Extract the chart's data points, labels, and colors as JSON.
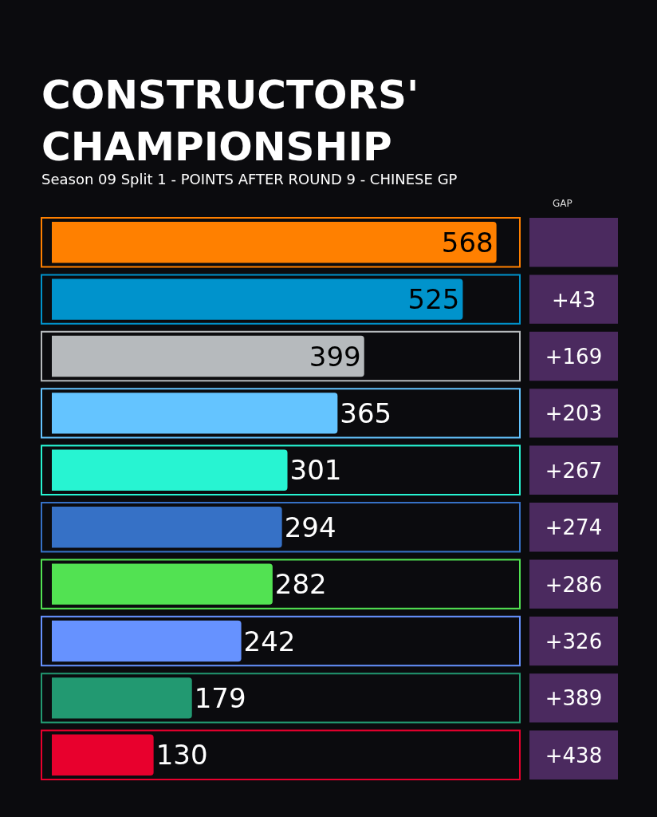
{
  "chart_data": {
    "type": "bar",
    "orientation": "horizontal",
    "title": "CONSTRUCTORS' CHAMPIONSHIP",
    "subtitle": "Season 09 Split 1 - POINTS AFTER ROUND 9 - CHINESE GP",
    "categories": [
      null,
      null,
      null,
      null,
      null,
      null,
      null,
      null,
      null,
      null
    ],
    "values": [
      568,
      525,
      399,
      365,
      301,
      294,
      282,
      242,
      179,
      130
    ],
    "colors": [
      "#ff8000",
      "#0093cc",
      "#b6babd",
      "#64c4ff",
      "#27f4d2",
      "#3671c6",
      "#52e252",
      "#6692ff",
      "#229971",
      "#e8002d"
    ],
    "data_labels": true,
    "annotations": [
      "GAP",
      "+43",
      "+169",
      "+203",
      "+267",
      "+274",
      "+286",
      "+326",
      "+389",
      "+438"
    ]
  }
}
